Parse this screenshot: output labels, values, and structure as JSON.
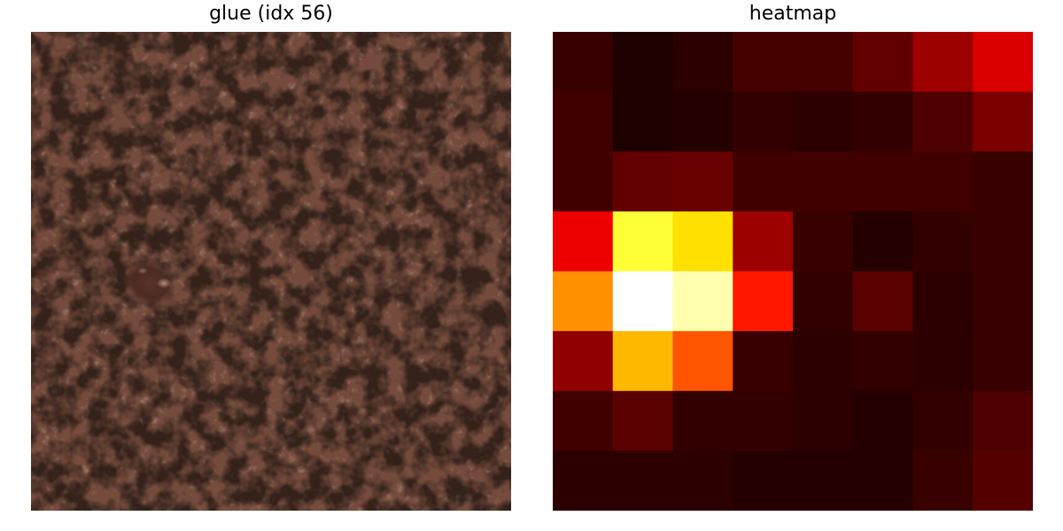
{
  "chart_data": [
    {
      "type": "image",
      "title": "glue (idx 56)",
      "image_content": "brown leather texture with a small raised glue blob on the left-middle area",
      "axes_visible": false
    },
    {
      "type": "heatmap",
      "title": "heatmap",
      "colormap": "hot",
      "axes_visible": false,
      "rows": 8,
      "cols": 8,
      "values": [
        [
          0.07,
          0.03,
          0.05,
          0.09,
          0.09,
          0.13,
          0.22,
          0.31
        ],
        [
          0.08,
          0.03,
          0.04,
          0.06,
          0.05,
          0.06,
          0.1,
          0.17
        ],
        [
          0.08,
          0.13,
          0.14,
          0.08,
          0.08,
          0.08,
          0.08,
          0.07
        ],
        [
          0.34,
          0.8,
          0.7,
          0.22,
          0.07,
          0.04,
          0.06,
          0.07
        ],
        [
          0.58,
          1.0,
          0.92,
          0.4,
          0.06,
          0.12,
          0.05,
          0.07
        ],
        [
          0.2,
          0.64,
          0.49,
          0.07,
          0.05,
          0.06,
          0.05,
          0.07
        ],
        [
          0.08,
          0.12,
          0.06,
          0.06,
          0.05,
          0.04,
          0.06,
          0.1
        ],
        [
          0.05,
          0.05,
          0.05,
          0.04,
          0.04,
          0.04,
          0.07,
          0.11
        ]
      ]
    }
  ]
}
